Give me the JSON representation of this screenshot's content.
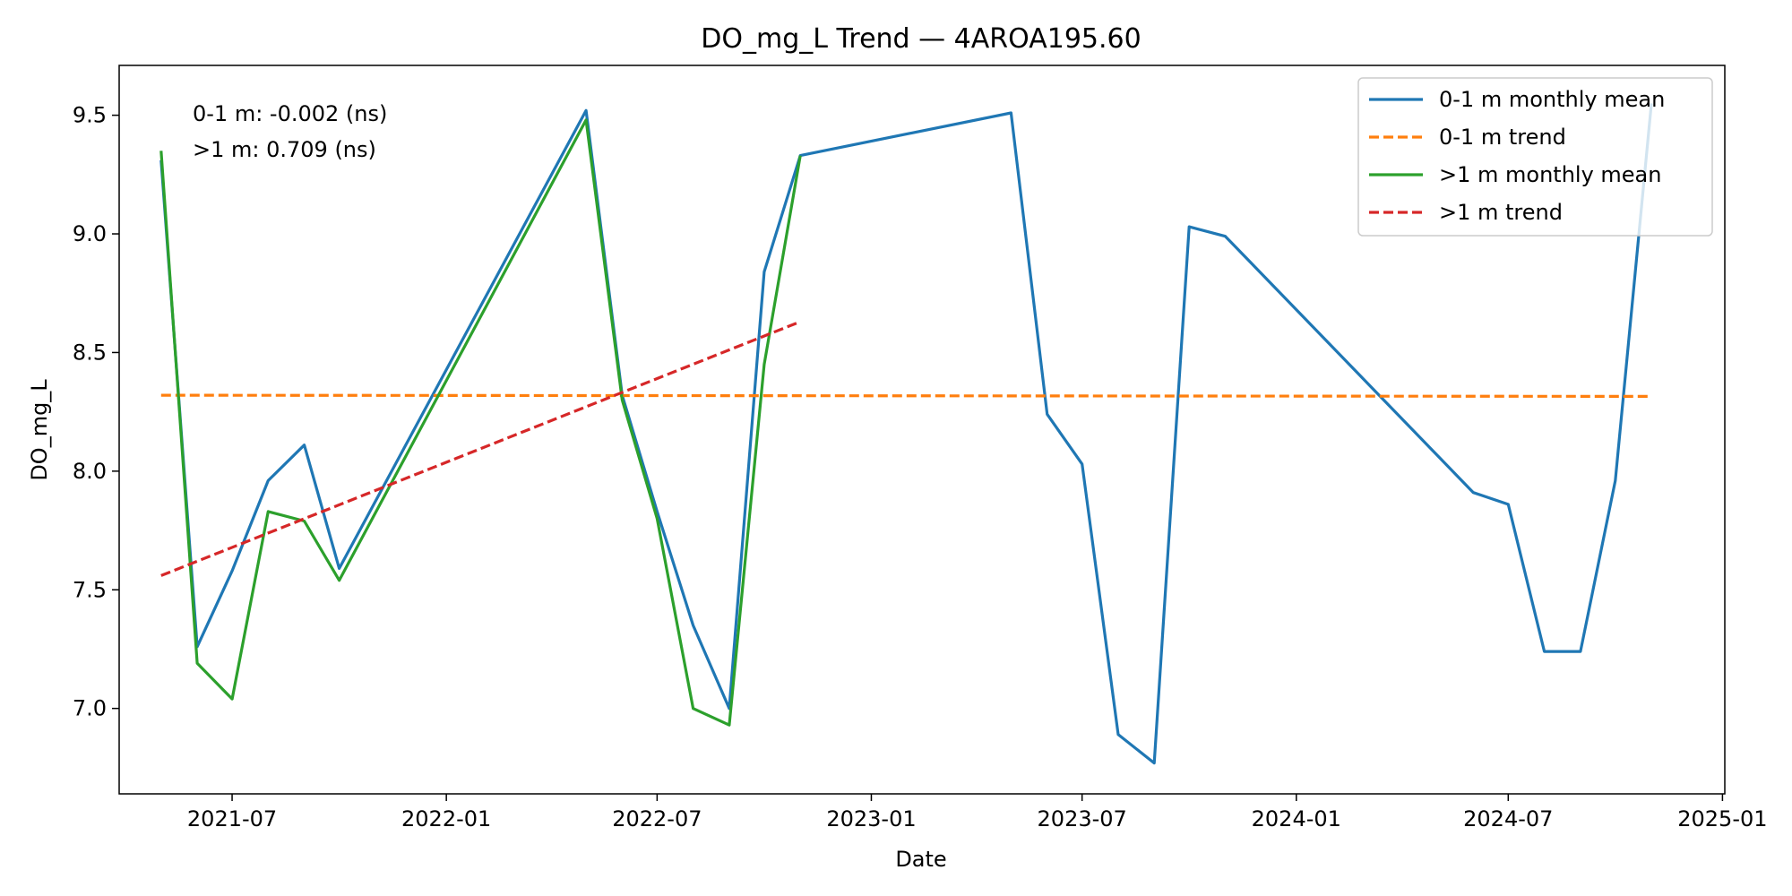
{
  "chart_data": {
    "type": "line",
    "title": "DO_mg_L Trend — 4AROA195.60",
    "xlabel": "Date",
    "ylabel": "DO_mg_L",
    "xlim": [
      "2021-03-26",
      "2025-01-03"
    ],
    "ylim": [
      6.64,
      9.71
    ],
    "x_ticks": [
      "2021-07",
      "2022-01",
      "2022-07",
      "2023-01",
      "2023-07",
      "2024-01",
      "2024-07",
      "2025-01"
    ],
    "y_ticks": [
      "7.0",
      "7.5",
      "8.0",
      "8.5",
      "9.0",
      "9.5"
    ],
    "grid": false,
    "legend_position": "top-right",
    "annotations": [
      "0-1 m: -0.002 (ns)",
      ">1 m: 0.709 (ns)"
    ],
    "series": [
      {
        "name": "0-1 m monthly mean",
        "color": "#1f77b4",
        "style": "solid",
        "points": [
          [
            "2021-05-01",
            9.31
          ],
          [
            "2021-06-01",
            7.26
          ],
          [
            "2021-07-01",
            7.58
          ],
          [
            "2021-08-01",
            7.96
          ],
          [
            "2021-09-01",
            8.11
          ],
          [
            "2021-10-01",
            7.59
          ],
          [
            "2022-05-01",
            9.52
          ],
          [
            "2022-06-01",
            8.32
          ],
          [
            "2022-07-01",
            7.83
          ],
          [
            "2022-08-01",
            7.35
          ],
          [
            "2022-09-01",
            7.0
          ],
          [
            "2022-10-01",
            8.84
          ],
          [
            "2022-11-01",
            9.33
          ],
          [
            "2023-05-01",
            9.51
          ],
          [
            "2023-06-01",
            8.24
          ],
          [
            "2023-07-01",
            8.03
          ],
          [
            "2023-08-01",
            6.89
          ],
          [
            "2023-09-01",
            6.77
          ],
          [
            "2023-10-01",
            9.03
          ],
          [
            "2023-11-01",
            8.99
          ],
          [
            "2024-06-01",
            7.91
          ],
          [
            "2024-07-01",
            7.86
          ],
          [
            "2024-08-01",
            7.24
          ],
          [
            "2024-09-01",
            7.24
          ],
          [
            "2024-10-01",
            7.96
          ],
          [
            "2024-11-01",
            9.55
          ]
        ]
      },
      {
        "name": "0-1 m trend",
        "color": "#ff7f0e",
        "style": "dashed",
        "points": [
          [
            "2021-05-01",
            8.32
          ],
          [
            "2024-11-01",
            8.315
          ]
        ]
      },
      {
        "name": ">1 m monthly mean",
        "color": "#2ca02c",
        "style": "solid",
        "points": [
          [
            "2021-05-01",
            9.35
          ],
          [
            "2021-06-01",
            7.19
          ],
          [
            "2021-07-01",
            7.04
          ],
          [
            "2021-08-01",
            7.83
          ],
          [
            "2021-09-01",
            7.79
          ],
          [
            "2021-10-01",
            7.54
          ],
          [
            "2022-05-01",
            9.48
          ],
          [
            "2022-06-01",
            8.3
          ],
          [
            "2022-07-01",
            7.8
          ],
          [
            "2022-08-01",
            7.0
          ],
          [
            "2022-09-01",
            6.93
          ],
          [
            "2022-10-01",
            8.45
          ],
          [
            "2022-11-01",
            9.33
          ]
        ]
      },
      {
        "name": ">1 m trend",
        "color": "#d62728",
        "style": "dashed",
        "points": [
          [
            "2021-05-01",
            7.56
          ],
          [
            "2022-11-01",
            8.63
          ]
        ]
      }
    ]
  }
}
